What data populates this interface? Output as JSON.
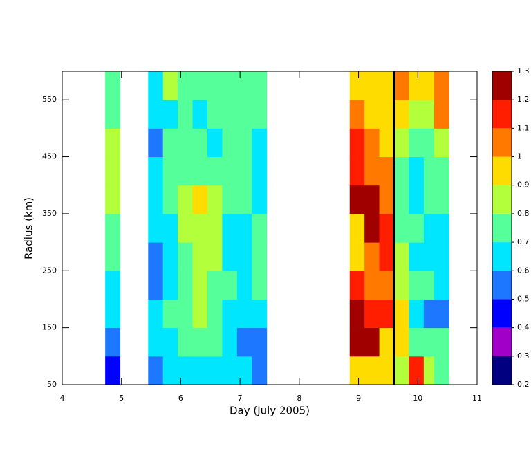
{
  "chart_data": {
    "type": "contour",
    "xlabel": "Day (July 2005)",
    "ylabel": "Radius (km)",
    "xlim": [
      4,
      11
    ],
    "xticks": [
      4,
      5,
      6,
      7,
      8,
      9,
      10,
      11
    ],
    "ylim": [
      50,
      600
    ],
    "yticks": [
      50,
      150,
      250,
      350,
      450,
      550
    ],
    "x": [
      4.85,
      5.575,
      5.825,
      6.075,
      6.325,
      6.575,
      6.825,
      7.075,
      7.325,
      8.975,
      9.225,
      9.475,
      9.725,
      9.975,
      10.225,
      10.4
    ],
    "y": [
      75,
      125,
      175,
      225,
      275,
      325,
      375,
      425,
      475,
      525,
      575
    ],
    "z": [
      [
        0.45,
        0.55,
        0.6,
        0.6,
        0.7,
        0.75,
        0.8,
        0.85,
        0.85,
        0.75,
        0.75
      ],
      [
        0.55,
        0.6,
        0.6,
        0.55,
        0.5,
        0.6,
        0.6,
        0.6,
        0.55,
        0.6,
        0.65
      ],
      [
        0.6,
        0.65,
        0.7,
        0.6,
        0.6,
        0.65,
        0.7,
        0.75,
        0.7,
        0.65,
        0.85
      ],
      [
        0.6,
        0.7,
        0.75,
        0.7,
        0.75,
        0.85,
        0.8,
        0.75,
        0.7,
        0.75,
        0.75
      ],
      [
        0.6,
        0.75,
        0.85,
        0.85,
        0.85,
        0.85,
        0.95,
        0.75,
        0.7,
        0.65,
        0.75
      ],
      [
        0.6,
        0.7,
        0.75,
        0.75,
        0.8,
        0.8,
        0.85,
        0.75,
        0.65,
        0.75,
        0.75
      ],
      [
        0.6,
        0.65,
        0.65,
        0.7,
        0.65,
        0.6,
        0.7,
        0.7,
        0.7,
        0.75,
        0.75
      ],
      [
        0.6,
        0.55,
        0.6,
        0.65,
        0.6,
        0.65,
        0.7,
        0.7,
        0.7,
        0.75,
        0.75
      ],
      [
        0.55,
        0.55,
        0.6,
        0.7,
        0.7,
        0.7,
        0.65,
        0.65,
        0.65,
        0.75,
        0.75
      ],
      [
        0.95,
        1.25,
        1.2,
        1.1,
        0.95,
        0.95,
        1.25,
        1.15,
        1.1,
        1.05,
        0.95
      ],
      [
        0.9,
        1.25,
        1.15,
        1.05,
        1.05,
        1.2,
        1.25,
        1.05,
        1.0,
        0.95,
        0.9
      ],
      [
        0.9,
        0.95,
        1.1,
        1.05,
        1.15,
        1.15,
        1.05,
        1.0,
        0.95,
        0.9,
        0.95
      ],
      [
        0.85,
        0.9,
        0.95,
        0.85,
        0.8,
        0.75,
        0.75,
        0.75,
        0.85,
        0.9,
        1.0
      ],
      [
        1.15,
        0.75,
        0.65,
        0.7,
        0.65,
        0.7,
        0.65,
        0.65,
        0.7,
        0.8,
        0.95
      ],
      [
        0.8,
        0.7,
        0.55,
        0.7,
        0.65,
        0.6,
        0.7,
        0.7,
        0.75,
        0.85,
        0.95
      ],
      [
        0.75,
        0.7,
        0.55,
        0.65,
        0.65,
        0.65,
        0.75,
        0.75,
        0.85,
        1.0,
        1.05
      ]
    ],
    "levels": [
      0.2,
      0.3,
      0.4,
      0.5,
      0.6,
      0.7,
      0.8,
      0.9,
      1,
      1.1,
      1.2,
      1.3
    ],
    "colors": [
      "#000080",
      "#a000c8",
      "#0000ff",
      "#1e78ff",
      "#00e6ff",
      "#55ff99",
      "#b4ff3c",
      "#ffdc00",
      "#ff7800",
      "#ff1e00",
      "#a00000"
    ],
    "vline": 9.6
  }
}
